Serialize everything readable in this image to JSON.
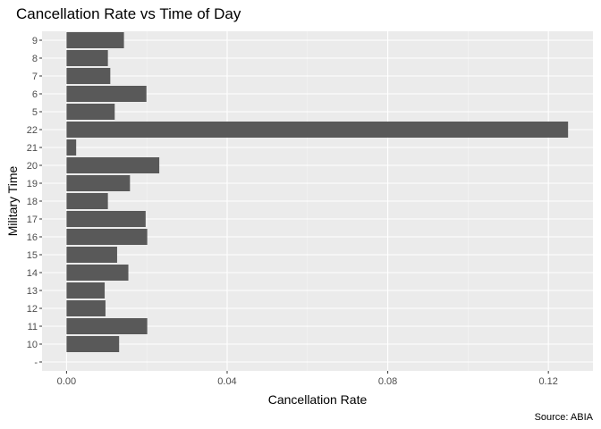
{
  "chart_data": {
    "type": "bar",
    "orientation": "horizontal",
    "title": "Cancellation Rate vs Time of Day",
    "xlabel": "Cancellation Rate",
    "ylabel": "Military Time",
    "caption": "Source: ABIA",
    "categories": [
      "-",
      "10",
      "11",
      "12",
      "13",
      "14",
      "15",
      "16",
      "17",
      "18",
      "19",
      "20",
      "21",
      "22",
      "5",
      "6",
      "7",
      "8",
      "9"
    ],
    "values": [
      null,
      0.0131,
      0.0201,
      0.0097,
      0.0095,
      0.0154,
      0.0126,
      0.0201,
      0.0197,
      0.0103,
      0.0158,
      0.0231,
      0.0024,
      0.1249,
      0.012,
      0.0199,
      0.0109,
      0.0103,
      0.0143
    ],
    "xlim": [
      -0.0061,
      0.1311
    ],
    "xticks": [
      0.0,
      0.04,
      0.08,
      0.12
    ],
    "xtick_labels": [
      "0.00",
      "0.04",
      "0.08",
      "0.12"
    ],
    "grid": true,
    "colors": {
      "bar": "#595959",
      "panel": "#ebebeb",
      "grid_major": "#ffffff",
      "grid_minor": "#f5f5f5",
      "tick_text": "#4d4d4d"
    }
  }
}
